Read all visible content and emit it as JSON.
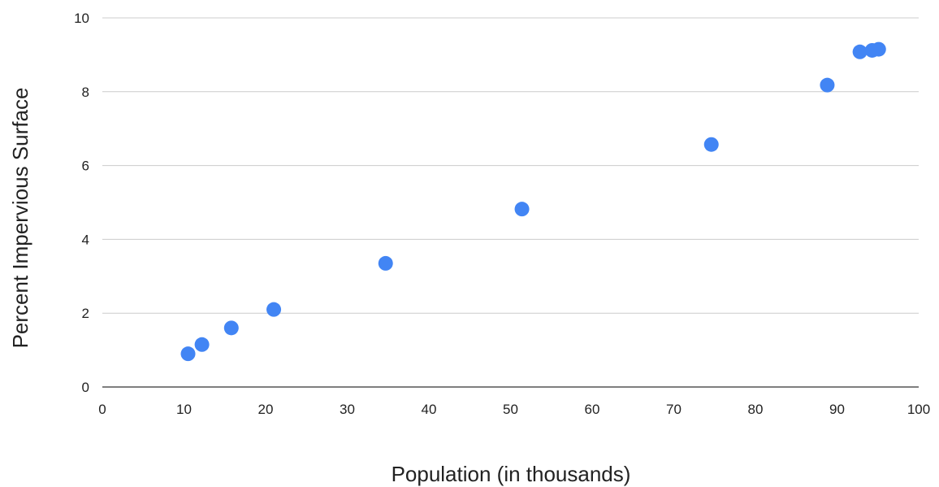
{
  "chart_data": {
    "type": "scatter",
    "title": "",
    "xlabel": "Population (in thousands)",
    "ylabel": "Percent Impervious Surface",
    "xlim": [
      0,
      100
    ],
    "ylim": [
      0,
      10
    ],
    "x_ticks": [
      "0",
      "10",
      "20",
      "30",
      "40",
      "50",
      "60",
      "70",
      "80",
      "90",
      "100"
    ],
    "y_ticks": [
      "0",
      "2",
      "4",
      "6",
      "8",
      "10"
    ],
    "grid": "horizontal",
    "legend": "none",
    "point_color": "#4285f4",
    "points": [
      {
        "x": 10.5,
        "y": 0.9
      },
      {
        "x": 12.2,
        "y": 1.15
      },
      {
        "x": 15.8,
        "y": 1.6
      },
      {
        "x": 21.0,
        "y": 2.1
      },
      {
        "x": 34.7,
        "y": 3.35
      },
      {
        "x": 51.4,
        "y": 4.82
      },
      {
        "x": 74.6,
        "y": 6.57
      },
      {
        "x": 88.8,
        "y": 8.18
      },
      {
        "x": 92.8,
        "y": 9.08
      },
      {
        "x": 94.3,
        "y": 9.12
      },
      {
        "x": 95.1,
        "y": 9.15
      }
    ]
  }
}
